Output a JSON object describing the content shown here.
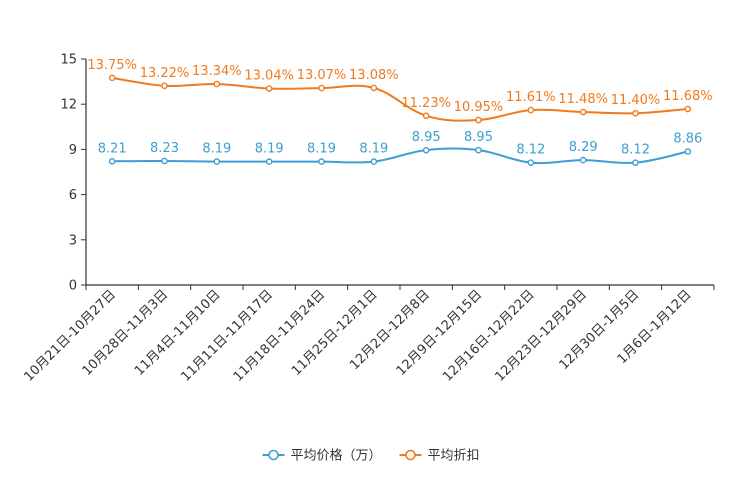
{
  "chart_data": {
    "type": "line",
    "title": "",
    "xlabel": "",
    "ylabel": "",
    "ylim": [
      0,
      15
    ],
    "yticks": [
      "0",
      "3",
      "6",
      "9",
      "12",
      "15"
    ],
    "grid": false,
    "legend_position": "bottom-center",
    "categories": [
      "10月21日-10月27日",
      "10月28日-11月3日",
      "11月4日-11月10日",
      "11月11日-11月17日",
      "11月18日-11月24日",
      "11月25日-12月1日",
      "12月2日-12月8日",
      "12月9日-12月15日",
      "12月16日-12月22日",
      "12月23日-12月29日",
      "12月30日-1月5日",
      "1月6日-1月12日"
    ],
    "series": [
      {
        "name": "平均价格（万）",
        "color": "#3d9fd1",
        "values": [
          8.21,
          8.23,
          8.19,
          8.19,
          8.19,
          8.19,
          8.95,
          8.95,
          8.12,
          8.29,
          8.12,
          8.86
        ],
        "labels": [
          "8.21",
          "8.23",
          "8.19",
          "8.19",
          "8.19",
          "8.19",
          "8.95",
          "8.95",
          "8.12",
          "8.29",
          "8.12",
          "8.86"
        ]
      },
      {
        "name": "平均折扣",
        "color": "#f07a1c",
        "values": [
          13.75,
          13.22,
          13.34,
          13.04,
          13.07,
          13.08,
          11.23,
          10.95,
          11.61,
          11.48,
          11.4,
          11.68
        ],
        "labels": [
          "13.75%",
          "13.22%",
          "13.34%",
          "13.04%",
          "13.07%",
          "13.08%",
          "11.23%",
          "10.95%",
          "11.61%",
          "11.48%",
          "11.40%",
          "11.68%"
        ]
      }
    ]
  }
}
